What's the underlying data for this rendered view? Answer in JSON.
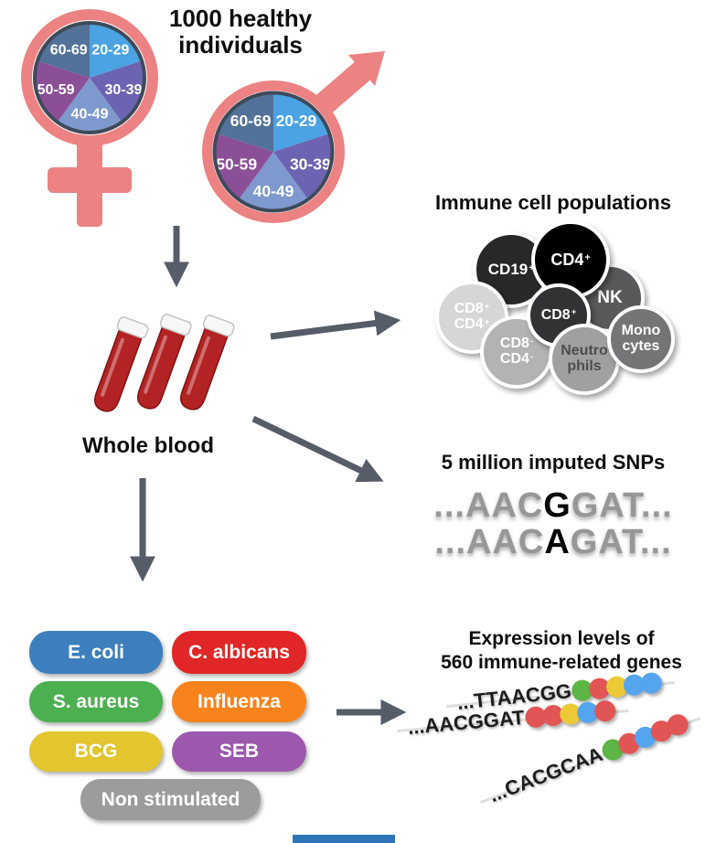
{
  "demographics": {
    "title_line1": "1000 healthy",
    "title_line2": "individuals",
    "symbol_color": "#ec8282",
    "age_pie": {
      "type": "pie",
      "slices": [
        {
          "label": "20-29",
          "color": "#4ba3e3"
        },
        {
          "label": "30-39",
          "color": "#6c63b2"
        },
        {
          "label": "40-49",
          "color": "#7d99cd"
        },
        {
          "label": "50-59",
          "color": "#8a4f97"
        },
        {
          "label": "60-69",
          "color": "#527299"
        }
      ]
    }
  },
  "whole_blood": {
    "label": "Whole blood",
    "tube_color": "#b32323",
    "tube_rim_color": "#f7f7f7"
  },
  "immune_cells": {
    "title": "Immune cell populations",
    "cells": [
      {
        "id": "cd19",
        "l1": "CD19",
        "s1": "+",
        "l2": "",
        "s2": "",
        "bg": "#282828",
        "fg": "#ffffff"
      },
      {
        "id": "cd4",
        "l1": "CD4",
        "s1": "+",
        "l2": "",
        "s2": "",
        "bg": "#000000",
        "fg": "#ffffff"
      },
      {
        "id": "nk",
        "l1": "NK",
        "s1": "",
        "l2": "",
        "s2": "",
        "bg": "#59595b",
        "fg": "#ffffff"
      },
      {
        "id": "cd8cd4",
        "l1": "CD8",
        "s1": "+",
        "l2": "CD4",
        "s2": "+",
        "bg": "#d6d6d6",
        "fg": "#ffffff"
      },
      {
        "id": "cd8",
        "l1": "CD8",
        "s1": "+",
        "l2": "",
        "s2": "",
        "bg": "#323234",
        "fg": "#ffffff"
      },
      {
        "id": "mono",
        "l1": "Mono",
        "s1": "",
        "l2": "cytes",
        "s2": "",
        "bg": "#757578",
        "fg": "#ffffff"
      },
      {
        "id": "cd8neg",
        "l1": "CD8",
        "s1": "-",
        "l2": "CD4",
        "s2": "-",
        "bg": "#b3b3b3",
        "fg": "#ffffff"
      },
      {
        "id": "neutro",
        "l1": "Neutro",
        "s1": "",
        "l2": "phils",
        "s2": "",
        "bg": "#a0a0a0",
        "fg": "#4d4d4d"
      }
    ]
  },
  "snps": {
    "title": "5 million imputed SNPs",
    "rows": [
      {
        "pre": "...AAC",
        "alt": "G",
        "post": "GAT..."
      },
      {
        "pre": "...AAC",
        "alt": "A",
        "post": "GAT..."
      }
    ]
  },
  "stimuli": {
    "items": [
      {
        "label": "E. coli",
        "color": "#3d7fbd"
      },
      {
        "label": "C. albicans",
        "color": "#e02626"
      },
      {
        "label": "S. aureus",
        "color": "#4cb050"
      },
      {
        "label": "Influenza",
        "color": "#f8831d"
      },
      {
        "label": "BCG",
        "color": "#e3c52f"
      },
      {
        "label": "SEB",
        "color": "#9c58ad"
      },
      {
        "label": "Non stimulated",
        "color": "#9c9c9c"
      }
    ]
  },
  "expression": {
    "title_line1": "Expression levels of",
    "title_line2": "560 immune-related genes",
    "palette": {
      "green": "#5cb544",
      "red": "#e25555",
      "yellow": "#eec937",
      "blue": "#55a4ee"
    },
    "rows": [
      {
        "seq": "...TTAACGG",
        "dots": [
          "green",
          "red",
          "yellow",
          "blue",
          "blue"
        ]
      },
      {
        "seq": "...AACGGAT",
        "dots": [
          "red",
          "red",
          "yellow",
          "blue",
          "red"
        ]
      },
      {
        "seq": "...CACGCAA",
        "dots": [
          "green",
          "red",
          "blue",
          "red",
          "red"
        ]
      }
    ]
  },
  "arrows": {
    "color": "#565d68"
  },
  "footer_bar_color": "#2e74b8"
}
